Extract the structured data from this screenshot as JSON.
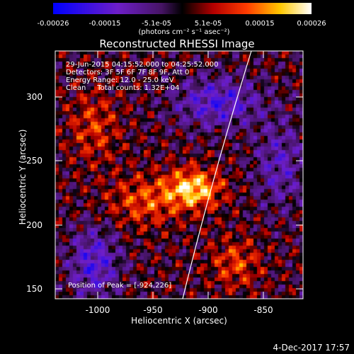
{
  "colorbar": {
    "ticks": [
      "-0.00026",
      "-0.00015",
      "-5.1e-05",
      "5.1e-05",
      "0.00015",
      "0.00026"
    ],
    "units": "(photons cm⁻² s⁻¹ asec⁻²)"
  },
  "title": "Reconstructed RHESSI Image",
  "info": {
    "line1": "29-Jun-2015 04:15:52.000 to 04:25:52.000",
    "line2": "Detectors: 3F 5F 6F 7F 8F 9F, Att 0",
    "line3": "Energy Range: 12.0 - 25.0 keV",
    "line4": "Clean     Total counts: 1.32E+04"
  },
  "peak": "Position of Peak = [-924,226]",
  "axes": {
    "xlabel": "Heliocentric X (arcsec)",
    "ylabel": "Heliocentric Y (arcsec)",
    "xticks": [
      "-1000",
      "-950",
      "-900",
      "-850"
    ],
    "yticks": [
      "300",
      "250",
      "200",
      "150"
    ]
  },
  "timestamp": "4-Dec-2017 17:57",
  "colors": {
    "background": "#000000",
    "foreground": "#ffffff",
    "limb": "#ffffff"
  }
}
